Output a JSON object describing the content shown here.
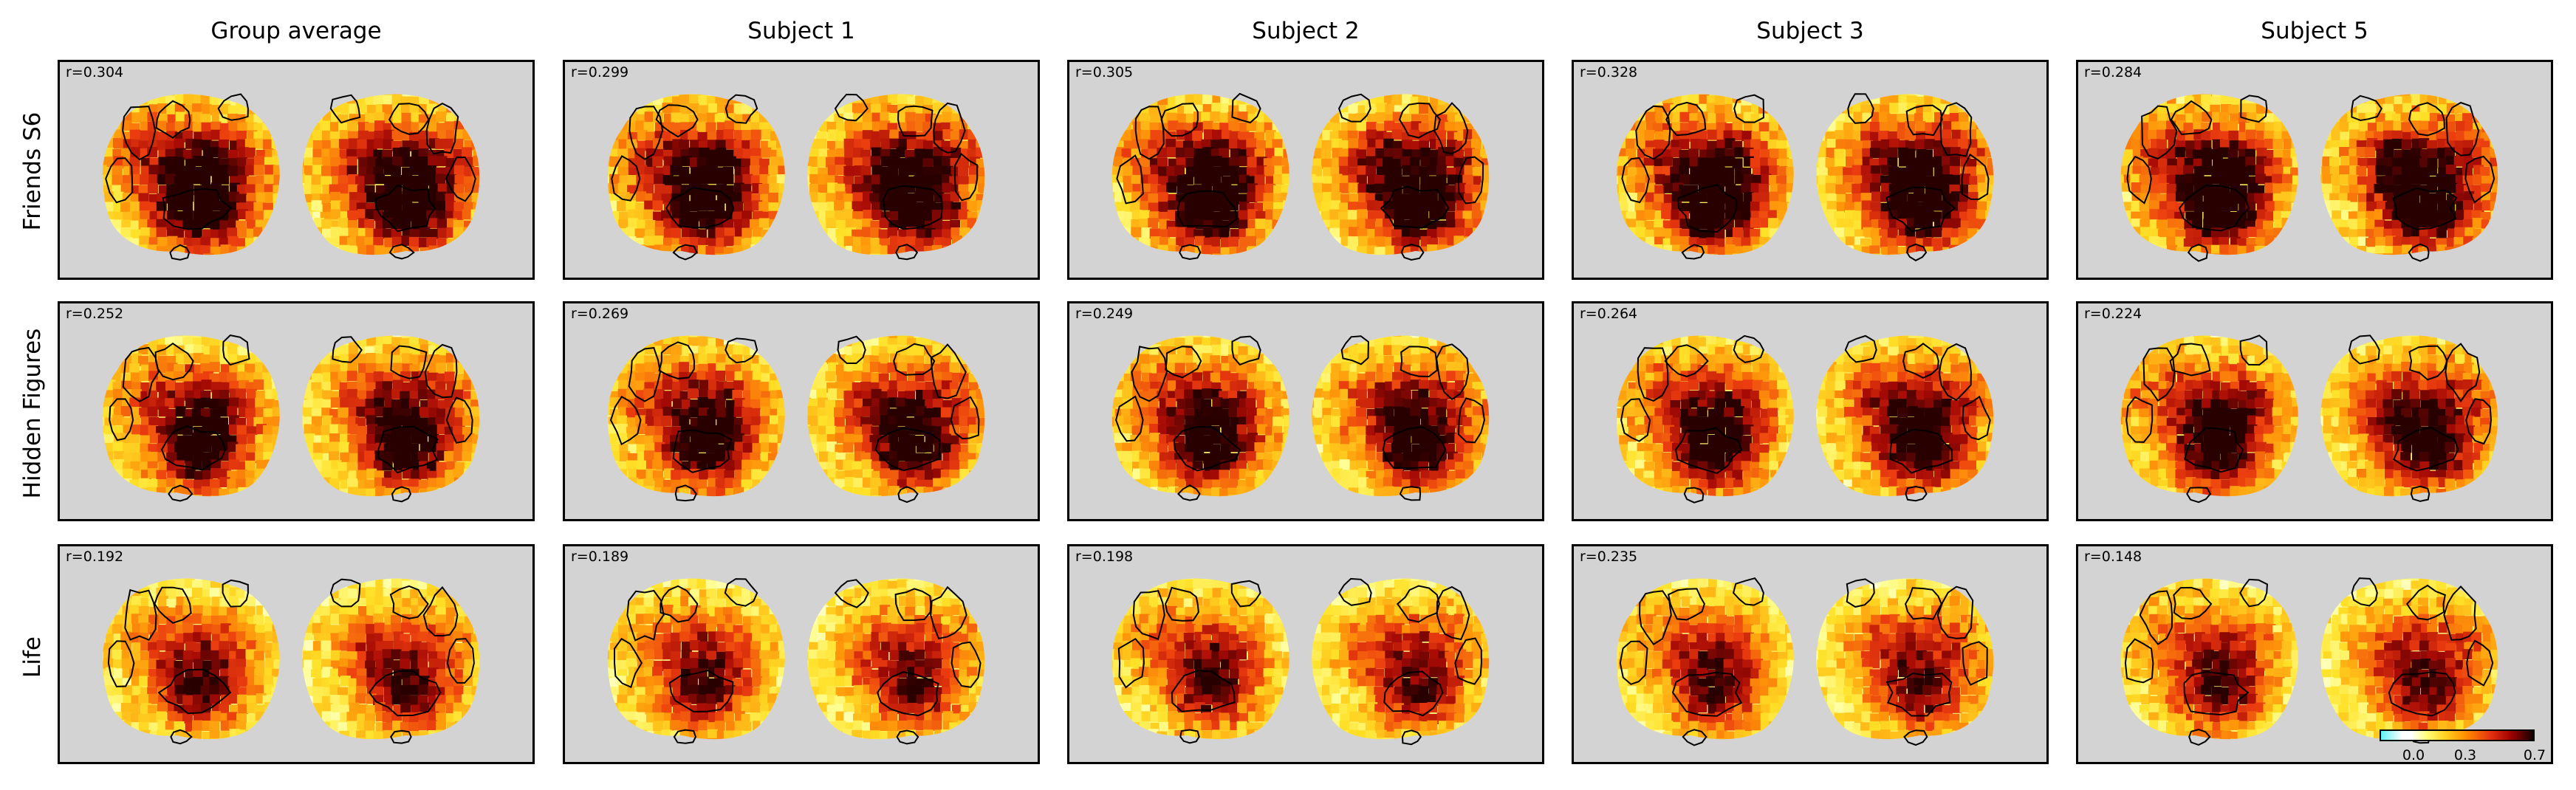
{
  "columns": [
    "Group average",
    "Subject 1",
    "Subject 2",
    "Subject 3",
    "Subject 5"
  ],
  "rows": [
    "Friends S6",
    "Hidden Figures",
    "Life"
  ],
  "r_values": [
    [
      "r=0.304",
      "r=0.299",
      "r=0.305",
      "r=0.328",
      "r=0.284"
    ],
    [
      "r=0.252",
      "r=0.269",
      "r=0.249",
      "r=0.264",
      "r=0.224"
    ],
    [
      "r=0.192",
      "r=0.189",
      "r=0.198",
      "r=0.235",
      "r=0.148"
    ]
  ],
  "colorbar": {
    "ticks": [
      "0.0",
      "0.3",
      "0.7"
    ],
    "colors": [
      "#5ff2f5",
      "#ffffff",
      "#ffff7a",
      "#ffd21f",
      "#ff8c00",
      "#e43210",
      "#9b0000",
      "#140000"
    ]
  },
  "colors": {
    "panel_background": "#d3d3d3",
    "outline": "#000000"
  }
}
